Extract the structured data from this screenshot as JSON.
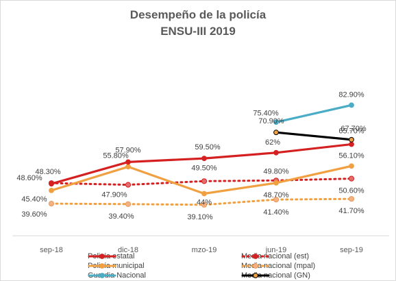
{
  "title_line1": "Desempeño de la policía",
  "title_line2": "ENSU-III 2019",
  "chart_data": {
    "type": "line",
    "title": "Desempeño de la policía ENSU-III 2019",
    "categories": [
      "sep-18",
      "dic-18",
      "mzo-19",
      "jun-19",
      "sep-19"
    ],
    "ylabel": "",
    "xlabel": "",
    "grid": false,
    "legend_position": "bottom",
    "series": [
      {
        "name": "Policía estatal",
        "color": "#d42020",
        "style": "solid",
        "values": [
          48.3,
          57.9,
          59.5,
          62,
          65.7
        ],
        "labels": [
          "48.30%",
          "57.90%",
          "59.50%",
          "62%",
          "65.70%"
        ]
      },
      {
        "name": "Policía municipal",
        "color": "#f0a040",
        "style": "solid",
        "values": [
          45.4,
          55.8,
          44,
          48.7,
          56.1
        ],
        "labels": [
          "45.40%",
          "55.80%",
          "44%",
          "48.70%",
          "56.10%"
        ]
      },
      {
        "name": "Guardia Nacional",
        "color": "#4bacc6",
        "style": "solid",
        "values": [
          null,
          null,
          null,
          75.4,
          82.9
        ],
        "labels": [
          "",
          "",
          "",
          "75.40%",
          "82.90%"
        ]
      },
      {
        "name": "Media nacional (est)",
        "color": "#d42020",
        "style": "dotted",
        "values": [
          48.6,
          47.9,
          49.5,
          49.8,
          50.6
        ],
        "labels": [
          "48.60%",
          "47.90%",
          "49.50%",
          "49.80%",
          "50.60%"
        ]
      },
      {
        "name": "Media nacional (mpal)",
        "color": "#f0a040",
        "style": "dotted",
        "values": [
          39.6,
          39.4,
          39.1,
          41.4,
          41.7
        ],
        "labels": [
          "39.60%",
          "39.40%",
          "39.10%",
          "41.40%",
          "41.70%"
        ]
      },
      {
        "name": "Media nacional (GN)",
        "color": "#000000",
        "style": "solid",
        "values": [
          null,
          null,
          null,
          70.9,
          67.7
        ],
        "labels": [
          "",
          "",
          "",
          "70.90%",
          "67.70%"
        ]
      }
    ]
  }
}
